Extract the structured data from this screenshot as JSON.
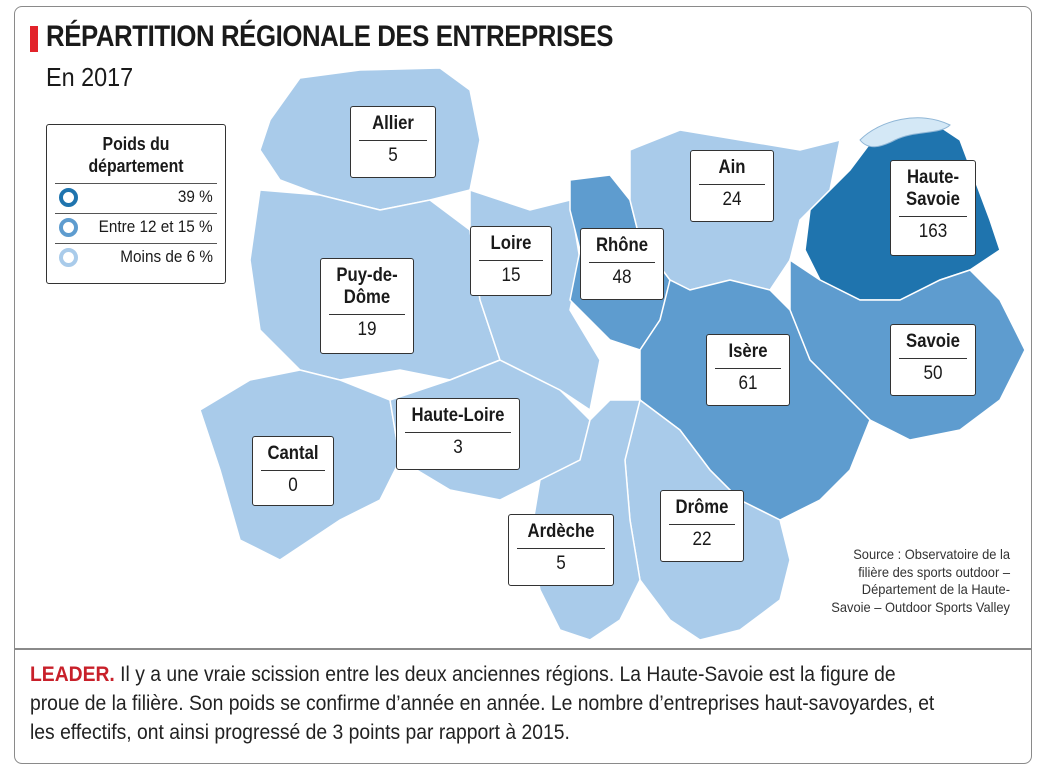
{
  "title": "RÉPARTITION RÉGIONALE DES ENTREPRISES",
  "subtitle": "En 2017",
  "colors": {
    "accent": "#e2232a",
    "dark": "#1f74ae",
    "medium": "#5e9ccf",
    "light": "#a9cbea",
    "lake": "#d4e8f6"
  },
  "legend": {
    "title": "Poids du département",
    "items": [
      {
        "label": "39 %",
        "level": "dark"
      },
      {
        "label": "Entre 12 et 15 %",
        "level": "medium"
      },
      {
        "label": "Moins de 6 %",
        "level": "light"
      }
    ]
  },
  "departments": [
    {
      "name": "Allier",
      "value": "5",
      "level": "light"
    },
    {
      "name": "Puy-de-Dôme",
      "value": "19",
      "level": "light"
    },
    {
      "name": "Cantal",
      "value": "0",
      "level": "light"
    },
    {
      "name": "Haute-Loire",
      "value": "3",
      "level": "light"
    },
    {
      "name": "Loire",
      "value": "15",
      "level": "light"
    },
    {
      "name": "Rhône",
      "value": "48",
      "level": "medium"
    },
    {
      "name": "Ain",
      "value": "24",
      "level": "light"
    },
    {
      "name": "Haute-Savoie",
      "value": "163",
      "level": "dark"
    },
    {
      "name": "Savoie",
      "value": "50",
      "level": "medium"
    },
    {
      "name": "Isère",
      "value": "61",
      "level": "medium"
    },
    {
      "name": "Drôme",
      "value": "22",
      "level": "light"
    },
    {
      "name": "Ardèche",
      "value": "5",
      "level": "light"
    }
  ],
  "source": "Source : Observatoire de la filière des sports outdoor – Département de la Haute-Savoie – Outdoor Sports Valley",
  "caption": {
    "lead": "LEADER.",
    "text": " Il y a une vraie scission entre les deux anciennes régions. La Haute-Savoie est la figure de proue de la filière. Son poids se confirme d’année en année. Le nombre d’entreprises haut-savoyardes, et les effectifs, ont ainsi progressé de 3 points par rapport à 2015."
  }
}
